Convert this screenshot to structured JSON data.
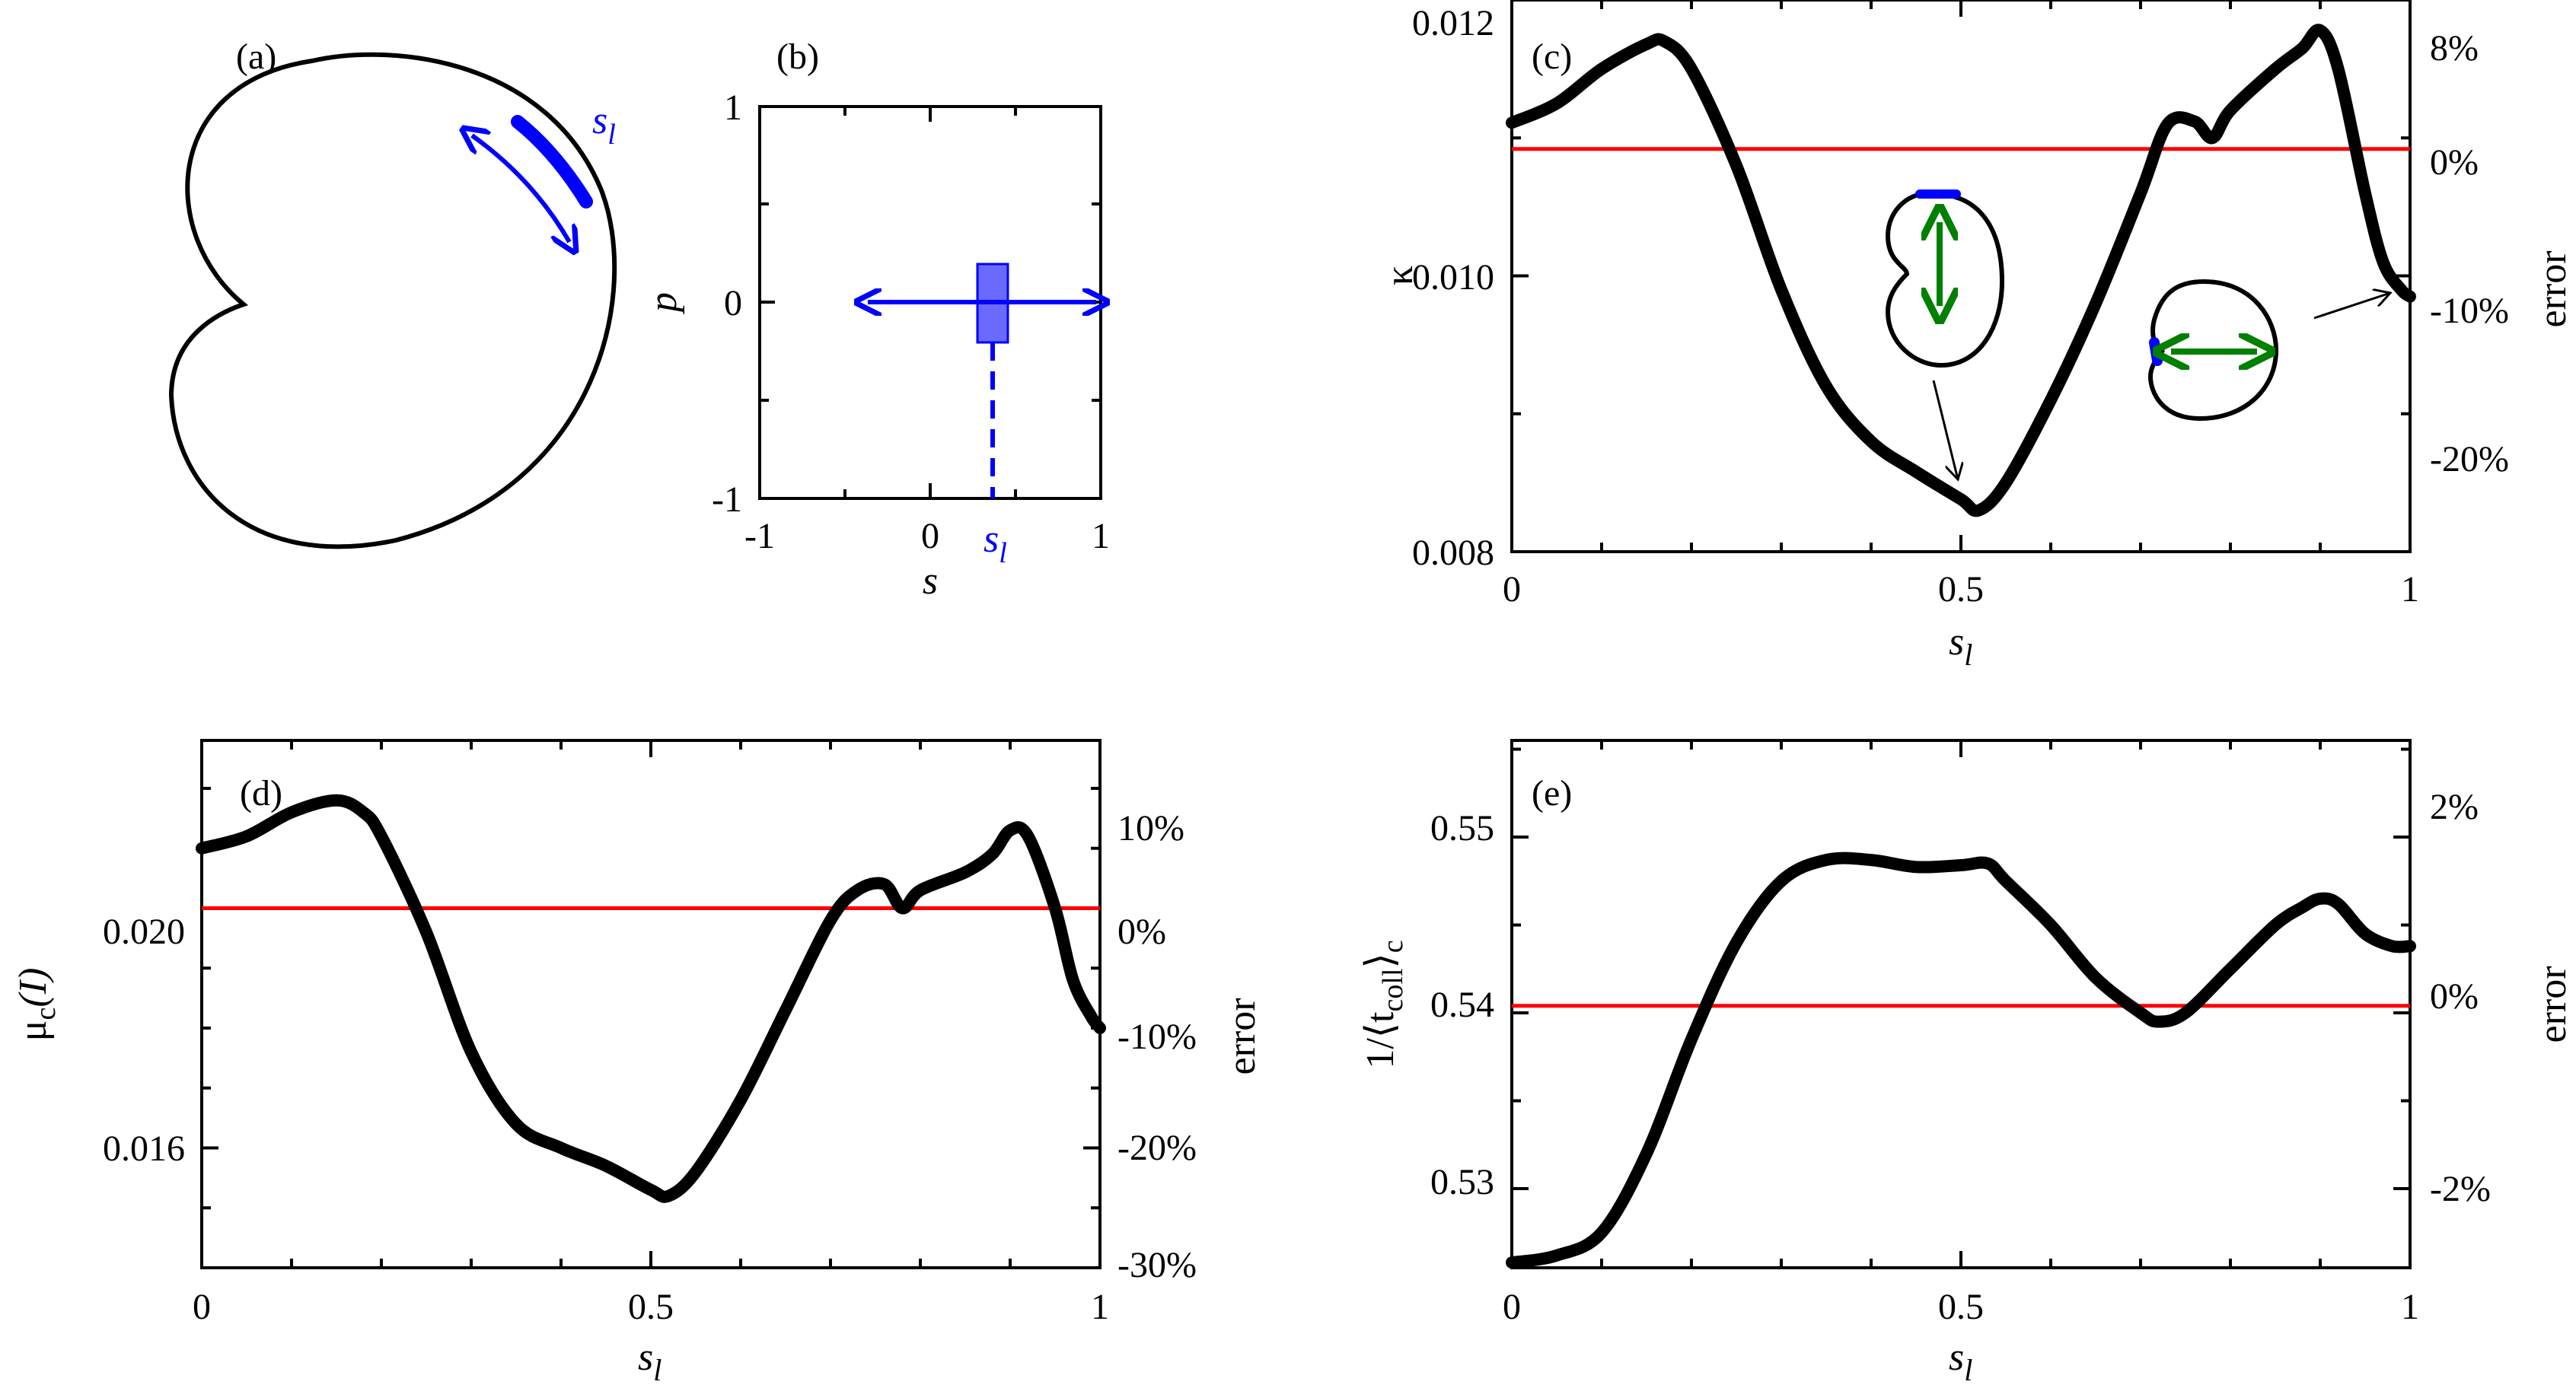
{
  "panels": {
    "a": {
      "label": "(a)",
      "arc_label": "s",
      "arc_label_sub": "l"
    },
    "b": {
      "label": "(b)",
      "xlabel": "s",
      "ylabel": "p",
      "xticks": [
        "-1",
        "0",
        "1"
      ],
      "yticks": [
        "1",
        "0",
        "-1"
      ],
      "marker_label": "s",
      "marker_label_sub": "l"
    }
  },
  "colors": {
    "curve": "#000000",
    "reference": "#ff0000",
    "blue": "#0000ff",
    "green": "#008000"
  },
  "chart_data": [
    {
      "id": "c",
      "type": "line",
      "label": "(c)",
      "xlabel": "s",
      "xlabel_sub": "l",
      "ylabel": "κ",
      "y2label": "error",
      "xlim": [
        0,
        1
      ],
      "ylim": [
        0.008,
        0.012
      ],
      "xticks": [
        "0",
        "0.5",
        "1"
      ],
      "yticks": [
        "0.008",
        "0.010",
        "0.012"
      ],
      "y2ticks": [
        "8%",
        "0%",
        "-10%",
        "-20%"
      ],
      "reference": 0.01092,
      "series": [
        {
          "name": "kappa",
          "x": [
            0,
            0.05,
            0.1,
            0.15,
            0.17,
            0.2,
            0.25,
            0.3,
            0.35,
            0.4,
            0.45,
            0.5,
            0.52,
            0.55,
            0.6,
            0.65,
            0.7,
            0.73,
            0.76,
            0.78,
            0.8,
            0.85,
            0.88,
            0.9,
            0.92,
            0.95,
            0.97,
            0.99,
            1.0
          ],
          "y": [
            0.01111,
            0.01125,
            0.0115,
            0.01168,
            0.0117,
            0.0115,
            0.0108,
            0.0099,
            0.0092,
            0.0088,
            0.00858,
            0.00838,
            0.0083,
            0.0085,
            0.0091,
            0.0098,
            0.0106,
            0.0111,
            0.01112,
            0.011,
            0.0112,
            0.0115,
            0.01165,
            0.01178,
            0.0115,
            0.0106,
            0.0101,
            0.0099,
            0.00985
          ]
        }
      ],
      "annotations": []
    },
    {
      "id": "d",
      "type": "line",
      "label": "(d)",
      "xlabel": "s",
      "xlabel_sub": "l",
      "ylabel": "μ",
      "ylabel_sub": "c",
      "ylabel_suffix": "(I)",
      "y2label": "error",
      "xlim": [
        0,
        1
      ],
      "ylim": [
        0.014,
        0.0228
      ],
      "xticks": [
        "0",
        "0.5",
        "1"
      ],
      "yticks": [
        "0.016",
        "0.020"
      ],
      "y2ticks": [
        "10%",
        "0%",
        "-10%",
        "-20%",
        "-30%"
      ],
      "reference": 0.02,
      "series": [
        {
          "name": "mu_c",
          "x": [
            0,
            0.05,
            0.1,
            0.15,
            0.18,
            0.2,
            0.25,
            0.3,
            0.35,
            0.4,
            0.45,
            0.5,
            0.52,
            0.55,
            0.6,
            0.65,
            0.7,
            0.73,
            0.76,
            0.78,
            0.8,
            0.85,
            0.88,
            0.9,
            0.92,
            0.95,
            0.97,
            0.99,
            1.0
          ],
          "y": [
            0.021,
            0.0212,
            0.0216,
            0.0218,
            0.0216,
            0.0212,
            0.0196,
            0.0176,
            0.0164,
            0.016,
            0.0157,
            0.0153,
            0.0152,
            0.0156,
            0.0168,
            0.0183,
            0.0198,
            0.0203,
            0.0204,
            0.02,
            0.0203,
            0.0206,
            0.0209,
            0.0213,
            0.0212,
            0.02,
            0.0188,
            0.0182,
            0.018
          ]
        }
      ]
    },
    {
      "id": "e",
      "type": "line",
      "label": "(e)",
      "xlabel": "s",
      "xlabel_sub": "l",
      "ylabel": "1/⟨t",
      "ylabel_sub": "coll",
      "ylabel_suffix": "⟩",
      "ylabel_suffix_sub": "c",
      "y2label": "error",
      "xlim": [
        0,
        1
      ],
      "ylim": [
        0.5255,
        0.5555
      ],
      "xticks": [
        "0",
        "0.5",
        "1"
      ],
      "yticks": [
        "0.53",
        "0.54",
        "0.55"
      ],
      "y2ticks": [
        "2%",
        "0%",
        "-2%"
      ],
      "reference": 0.5404,
      "series": [
        {
          "name": "inv_tcoll",
          "x": [
            0,
            0.05,
            0.1,
            0.15,
            0.2,
            0.25,
            0.3,
            0.35,
            0.4,
            0.45,
            0.5,
            0.53,
            0.55,
            0.6,
            0.65,
            0.7,
            0.72,
            0.75,
            0.8,
            0.85,
            0.88,
            0.9,
            0.92,
            0.95,
            0.98,
            1.0
          ],
          "y": [
            0.5258,
            0.5262,
            0.5275,
            0.532,
            0.5385,
            0.544,
            0.5475,
            0.5487,
            0.5487,
            0.5483,
            0.5484,
            0.5485,
            0.5475,
            0.545,
            0.542,
            0.54,
            0.5395,
            0.54,
            0.5425,
            0.545,
            0.546,
            0.5465,
            0.5462,
            0.5445,
            0.5438,
            0.5438
          ]
        }
      ]
    }
  ]
}
